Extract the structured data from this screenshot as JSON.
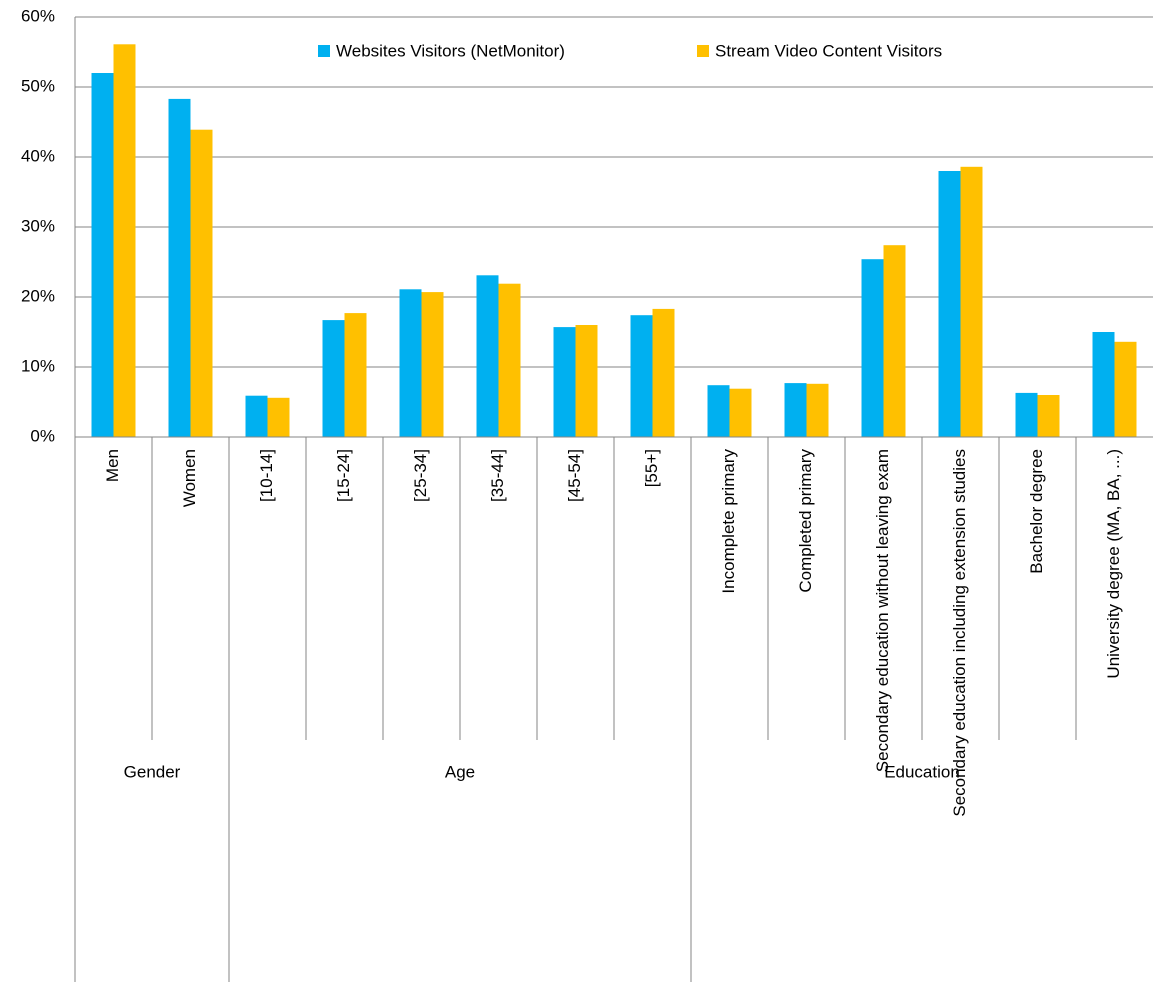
{
  "chart_data": {
    "type": "bar",
    "groups": [
      {
        "name": "Gender",
        "categories": [
          "Men",
          "Women"
        ]
      },
      {
        "name": "Age",
        "categories": [
          "[10-14]",
          "[15-24]",
          "[25-34]",
          "[35-44]",
          "[45-54]",
          "[55+]"
        ]
      },
      {
        "name": "Education",
        "categories": [
          "Incomplete primary",
          "Completed primary",
          "Secondary education without leaving exam",
          "Secondary education including extension studies",
          "Bachelor degree",
          "University degree (MA, BA, ...)"
        ]
      }
    ],
    "series": [
      {
        "name": "Websites Visitors (NetMonitor)",
        "color": "#00b0f0",
        "values": [
          52.0,
          48.3,
          5.9,
          16.7,
          21.1,
          23.1,
          15.7,
          17.4,
          7.4,
          7.7,
          25.4,
          38.0,
          6.3,
          15.0
        ]
      },
      {
        "name": "Stream Video Content Visitors",
        "color": "#ffc000",
        "values": [
          56.1,
          43.9,
          5.6,
          17.7,
          20.7,
          21.9,
          16.0,
          18.3,
          6.9,
          7.6,
          27.4,
          38.6,
          6.0,
          13.6
        ]
      }
    ],
    "ylim": [
      0,
      60
    ],
    "yticks": [
      {
        "value": 0,
        "label": "0%"
      },
      {
        "value": 10,
        "label": "10%"
      },
      {
        "value": 20,
        "label": "20%"
      },
      {
        "value": 30,
        "label": "30%"
      },
      {
        "value": 40,
        "label": "40%"
      },
      {
        "value": 50,
        "label": "50%"
      },
      {
        "value": 60,
        "label": "60%"
      }
    ],
    "grid": true,
    "legend": "top"
  }
}
